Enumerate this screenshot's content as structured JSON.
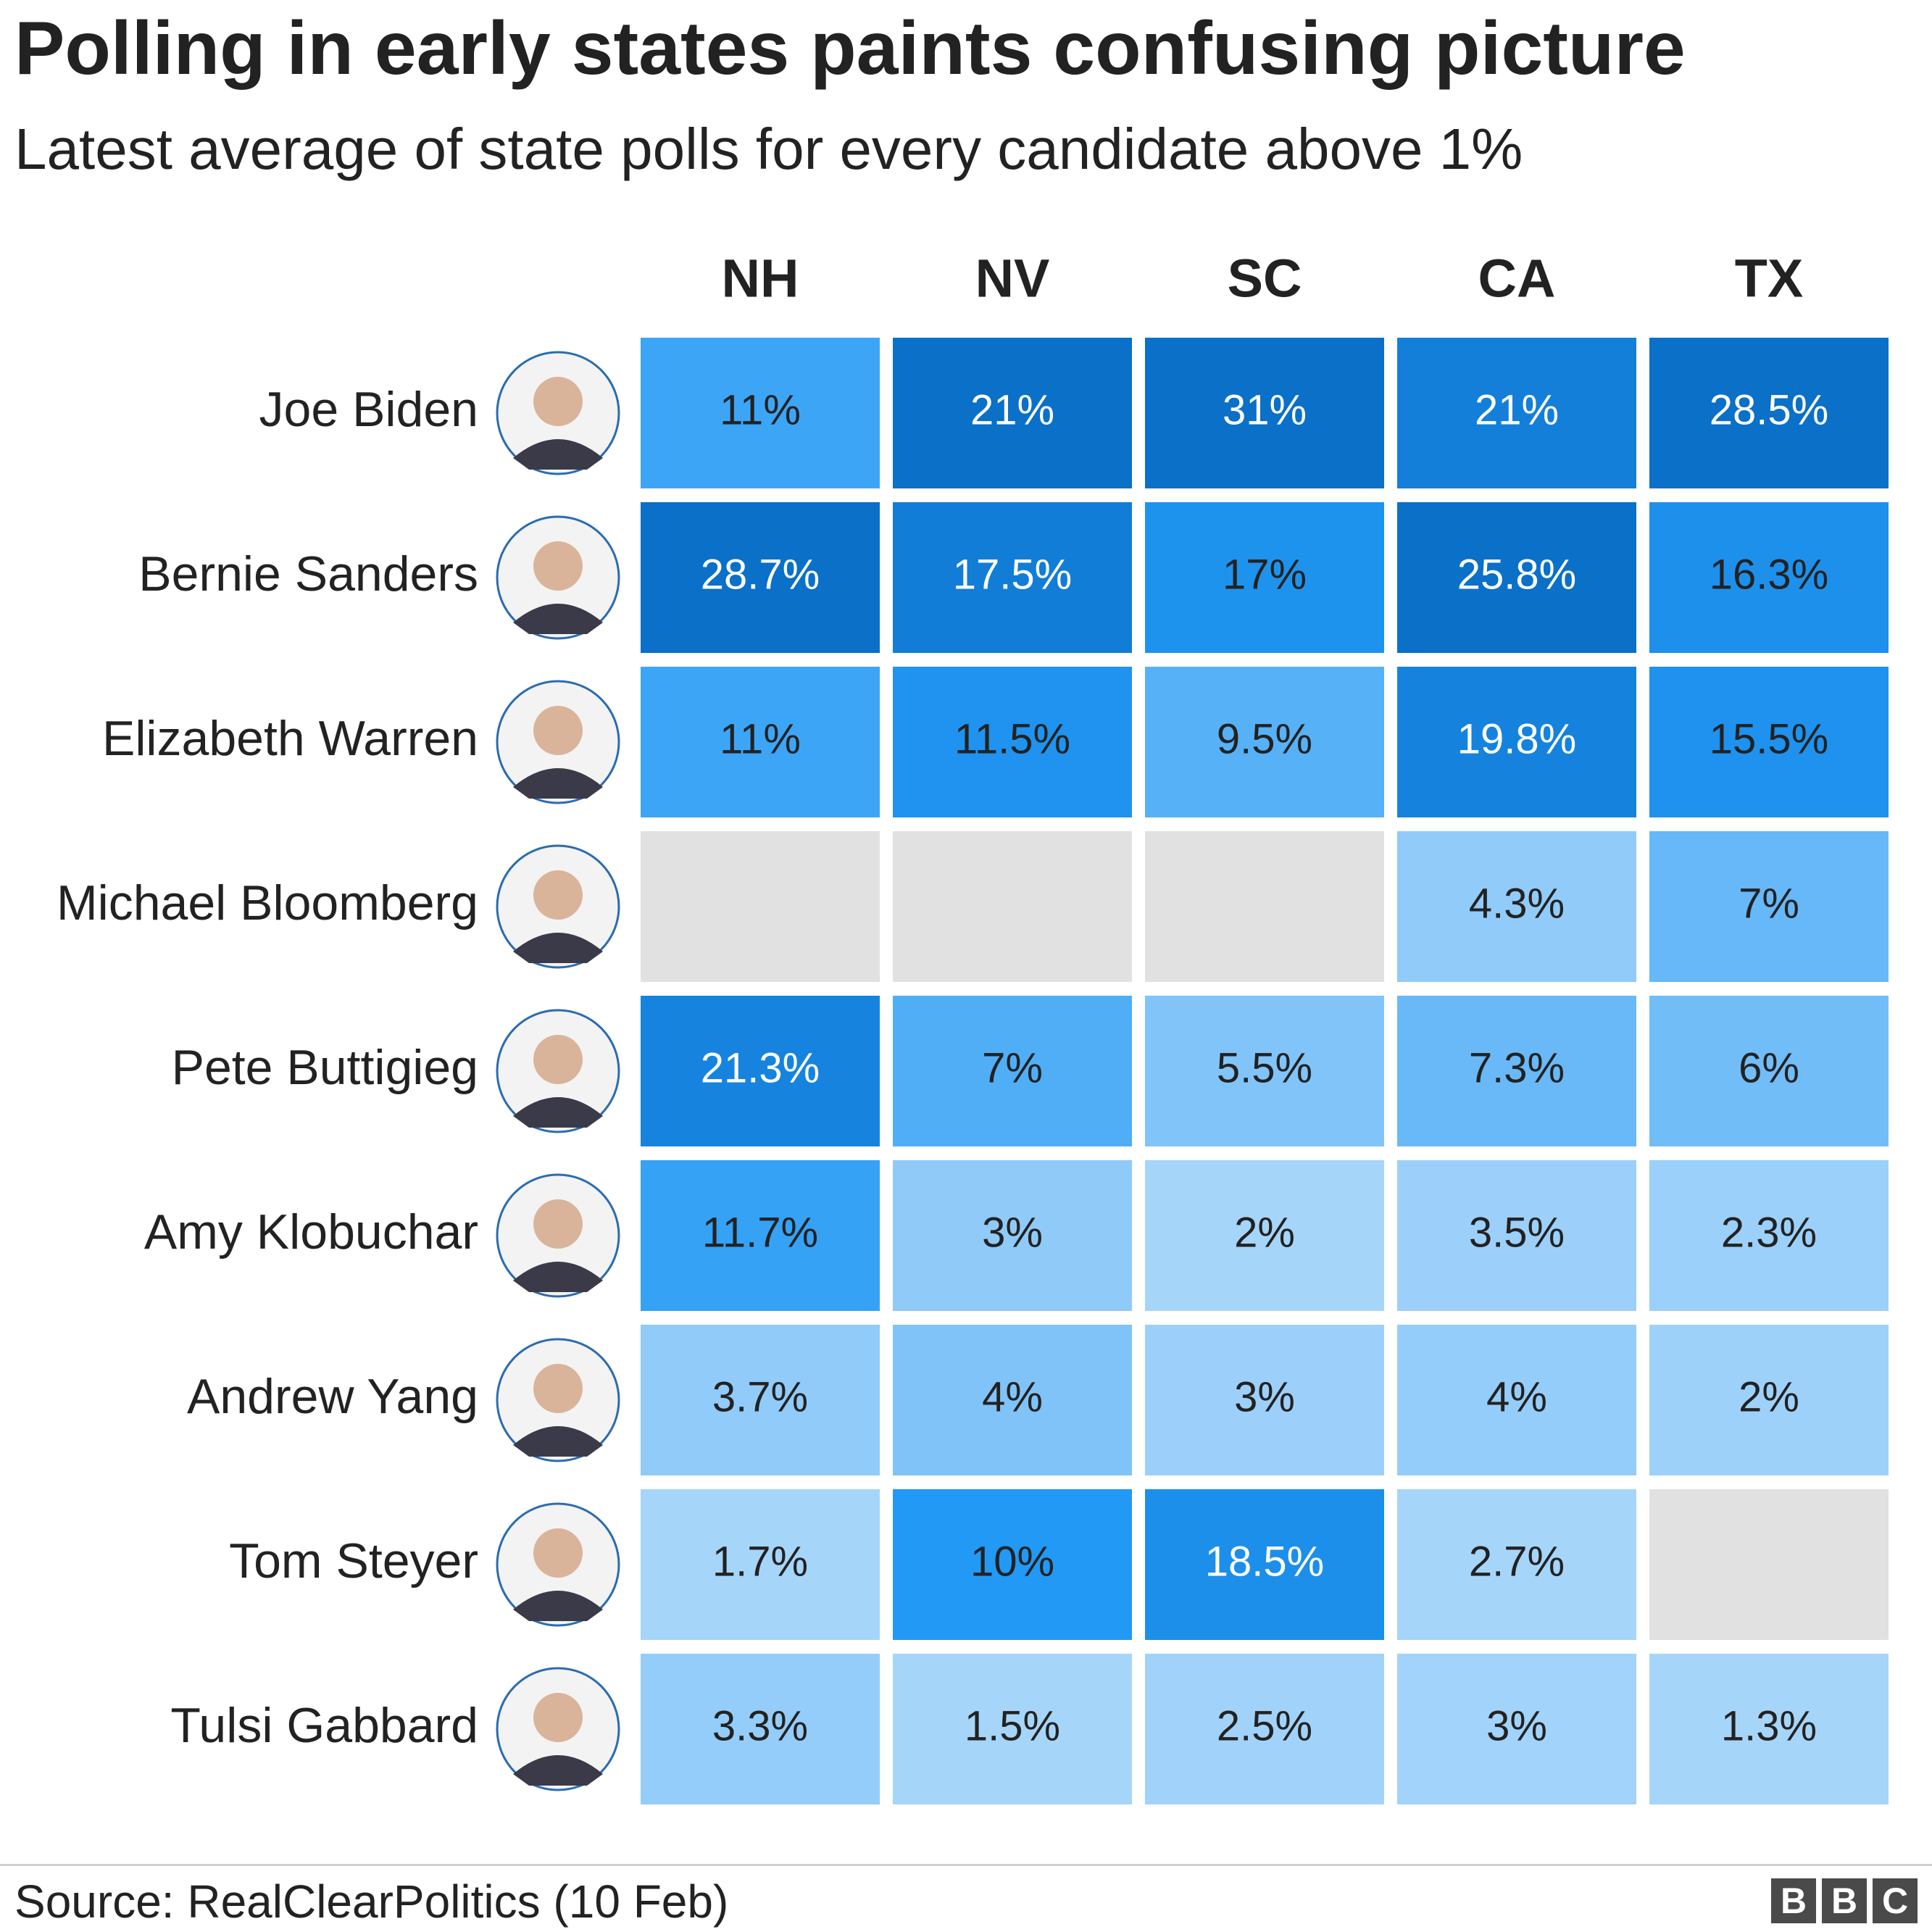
{
  "title": "Polling in early states paints confusing picture",
  "subtitle": "Latest average of state polls for every candidate above 1%",
  "source": "Source: RealClearPolitics (10 Feb)",
  "logo": {
    "letters": [
      "B",
      "B",
      "C"
    ]
  },
  "colors": {
    "scale_dark": "#0a70c8",
    "scale_mid": "#2299f5",
    "scale_light": "#d0e8fc",
    "missing": "#e1e1e1",
    "text_light": "#ffffff",
    "text_dark": "#222222",
    "avatar_ring": "#2b6cb0"
  },
  "chart_data": {
    "type": "heatmap",
    "x": [
      "NH",
      "NV",
      "SC",
      "CA",
      "TX"
    ],
    "y": [
      "Joe Biden",
      "Bernie Sanders",
      "Elizabeth Warren",
      "Michael Bloomberg",
      "Pete Buttigieg",
      "Amy Klobuchar",
      "Andrew Yang",
      "Tom Steyer",
      "Tulsi Gabbard"
    ],
    "values": [
      [
        11,
        21,
        31,
        21,
        28.5
      ],
      [
        28.7,
        17.5,
        17,
        25.8,
        16.3
      ],
      [
        11,
        11.5,
        9.5,
        19.8,
        15.5
      ],
      [
        null,
        null,
        null,
        4.3,
        7
      ],
      [
        21.3,
        7,
        5.5,
        7.3,
        6
      ],
      [
        11.7,
        3,
        2,
        3.5,
        2.3
      ],
      [
        3.7,
        4,
        3,
        4,
        2
      ],
      [
        1.7,
        10,
        18.5,
        2.7,
        null
      ],
      [
        3.3,
        1.5,
        2.5,
        3,
        1.3
      ]
    ],
    "labels": [
      [
        "11%",
        "21%",
        "31%",
        "21%",
        "28.5%"
      ],
      [
        "28.7%",
        "17.5%",
        "17%",
        "25.8%",
        "16.3%"
      ],
      [
        "11%",
        "11.5%",
        "9.5%",
        "19.8%",
        "15.5%"
      ],
      [
        "",
        "",
        "",
        "4.3%",
        "7%"
      ],
      [
        "21.3%",
        "7%",
        "5.5%",
        "7.3%",
        "6%"
      ],
      [
        "11.7%",
        "3%",
        "2%",
        "3.5%",
        "2.3%"
      ],
      [
        "3.7%",
        "4%",
        "3%",
        "4%",
        "2%"
      ],
      [
        "1.7%",
        "10%",
        "18.5%",
        "2.7%",
        ""
      ],
      [
        "3.3%",
        "1.5%",
        "2.5%",
        "3%",
        "1.3%"
      ]
    ],
    "color_scale": "per-column: darker blue = higher share; grey = not polled",
    "legend": "none"
  }
}
